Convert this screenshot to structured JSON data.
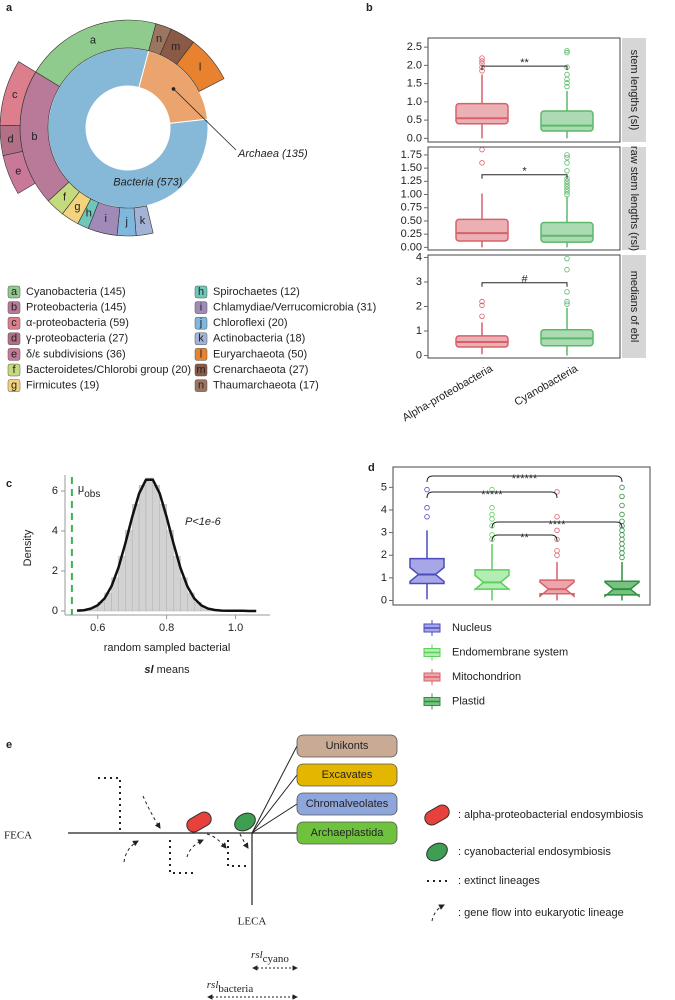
{
  "panel_labels": [
    "a",
    "b",
    "c",
    "d",
    "e"
  ],
  "chart_data": [
    {
      "type": "sunburst",
      "inner": [
        {
          "label": "Archaea (135)",
          "value": 135,
          "color": "#eba46e"
        },
        {
          "label": "Bacteria (573)",
          "value": 573,
          "color": "#86b8d8"
        }
      ],
      "groups": [
        {
          "letter": "a",
          "label": "Cyanobacteria (145)",
          "value": 145,
          "color": "#8fcb8c"
        },
        {
          "letter": "b",
          "label": "Proteobacteria (145)",
          "value": 145,
          "color": "#b87a98"
        },
        {
          "letter": "c",
          "label": "α-proteobacteria (59)",
          "value": 59,
          "color": "#dc7e8c"
        },
        {
          "letter": "d",
          "label": "γ-proteobacteria (27)",
          "value": 27,
          "color": "#b26f86"
        },
        {
          "letter": "e",
          "label": "δ/ε subdivisions (36)",
          "value": 36,
          "color": "#c9789a"
        },
        {
          "letter": "f",
          "label": "Bacteroidetes/Chlorobi group (20)",
          "value": 20,
          "color": "#c5da7c"
        },
        {
          "letter": "g",
          "label": "Firmicutes (19)",
          "value": 19,
          "color": "#f3d37e"
        },
        {
          "letter": "h",
          "label": "Spirochaetes (12)",
          "value": 12,
          "color": "#6fc6b9"
        },
        {
          "letter": "i",
          "label": "Chlamydiae/Verrucomicrobia (31)",
          "value": 31,
          "color": "#a08bb8"
        },
        {
          "letter": "j",
          "label": "Chloroflexi (20)",
          "value": 20,
          "color": "#7fb7dd"
        },
        {
          "letter": "k",
          "label": "Actinobacteria (18)",
          "value": 18,
          "color": "#a3b3d6"
        },
        {
          "letter": "l",
          "label": "Euryarchaeota (50)",
          "value": 50,
          "color": "#e9822f"
        },
        {
          "letter": "m",
          "label": "Crenarchaeota (27)",
          "value": 27,
          "color": "#8a5a46"
        },
        {
          "letter": "n",
          "label": "Thaumarchaeota (17)",
          "value": 17,
          "color": "#9c7560"
        }
      ]
    },
    {
      "type": "box",
      "strip": "stem lengths (sl)",
      "ylim": [
        -0.1,
        2.75
      ],
      "yticks": [
        {
          "value": 0,
          "label": "0.0"
        },
        {
          "value": 0.5,
          "label": "0.5"
        },
        {
          "value": 1,
          "label": "1.0"
        },
        {
          "value": 1.5,
          "label": "1.5"
        },
        {
          "value": 2,
          "label": "2.0"
        },
        {
          "value": 2.5,
          "label": "2.5"
        }
      ],
      "series": [
        {
          "color": "#d9606a",
          "fill": "#eab0b4",
          "min": 0,
          "q1": 0.4,
          "median": 0.55,
          "q3": 0.95,
          "max": 1.75,
          "outliers": [
            1.85,
            1.95,
            2.05,
            2.12,
            2.2
          ]
        },
        {
          "color": "#5cb86a",
          "fill": "#acdab3",
          "min": 0,
          "q1": 0.2,
          "median": 0.35,
          "q3": 0.75,
          "max": 1.3,
          "outliers": [
            1.42,
            1.52,
            1.62,
            1.75,
            1.95,
            2.35,
            2.4
          ]
        }
      ],
      "bracket": "**"
    },
    {
      "type": "box",
      "strip": "raw stem lengths (rsl)",
      "ylim": [
        -0.05,
        1.9
      ],
      "yticks": [
        {
          "value": 0,
          "label": "0.00"
        },
        {
          "value": 0.25,
          "label": "0.25"
        },
        {
          "value": 0.5,
          "label": "0.50"
        },
        {
          "value": 0.75,
          "label": "0.75"
        },
        {
          "value": 1,
          "label": "1.00"
        },
        {
          "value": 1.25,
          "label": "1.25"
        },
        {
          "value": 1.5,
          "label": "1.50"
        },
        {
          "value": 1.75,
          "label": "1.75"
        }
      ],
      "series": [
        {
          "color": "#d9606a",
          "fill": "#eab0b4",
          "min": 0,
          "q1": 0.12,
          "median": 0.27,
          "q3": 0.53,
          "max": 1.02,
          "outliers": [
            1.6,
            1.85
          ]
        },
        {
          "color": "#5cb86a",
          "fill": "#acdab3",
          "min": 0,
          "q1": 0.1,
          "median": 0.22,
          "q3": 0.47,
          "max": 0.95,
          "outliers": [
            1.0,
            1.05,
            1.1,
            1.15,
            1.2,
            1.25,
            1.3,
            1.45,
            1.6,
            1.7,
            1.75
          ]
        }
      ],
      "bracket": "*"
    },
    {
      "type": "box",
      "strip": "medians of ebl",
      "ylim": [
        -0.1,
        4.1
      ],
      "yticks": [
        0,
        1,
        2,
        3,
        4
      ],
      "categories": [
        "Alpha-proteobacteria",
        "Cyanobacteria"
      ],
      "series": [
        {
          "color": "#d9606a",
          "fill": "#eab0b4",
          "min": 0.05,
          "q1": 0.35,
          "median": 0.55,
          "q3": 0.8,
          "max": 1.35,
          "outliers": [
            1.6,
            2.05,
            2.2
          ]
        },
        {
          "color": "#5cb86a",
          "fill": "#acdab3",
          "min": 0,
          "q1": 0.4,
          "median": 0.7,
          "q3": 1.05,
          "max": 1.95,
          "outliers": [
            2.1,
            2.2,
            2.6,
            3.5,
            3.95
          ]
        }
      ],
      "bracket": "#"
    },
    {
      "type": "histogram",
      "ylabel": "Density",
      "xlabel": "random sampled bacterial",
      "xlabel_var": "sl",
      "xlabel_tail": "means",
      "annotation": "P<1e-6",
      "observed": {
        "symbol": "μ",
        "sub": "obs",
        "x": 0.525,
        "color": "#3cb44b"
      },
      "xlim": [
        0.505,
        1.1
      ],
      "ylim": [
        -0.2,
        6.8
      ],
      "xticks": [
        0.6,
        0.8,
        {
          "value": 1,
          "label": "1.0"
        }
      ],
      "yticks": [
        0,
        2,
        4,
        6
      ],
      "bins": [
        0.54,
        0.56,
        0.58,
        0.6,
        0.62,
        0.64,
        0.66,
        0.68,
        0.7,
        0.72,
        0.74,
        0.76,
        0.78,
        0.8,
        0.82,
        0.84,
        0.86,
        0.88,
        0.9,
        0.92,
        0.94,
        0.96
      ],
      "values": [
        0.03,
        0.07,
        0.19,
        0.44,
        0.9,
        1.66,
        2.73,
        4.03,
        5.33,
        6.29,
        6.65,
        6.29,
        5.33,
        4.03,
        2.73,
        1.66,
        0.9,
        0.44,
        0.19,
        0.07,
        0.03
      ],
      "curve": {
        "x": [
          0.54,
          0.56,
          0.58,
          0.6,
          0.62,
          0.64,
          0.66,
          0.68,
          0.7,
          0.72,
          0.74,
          0.76,
          0.78,
          0.8,
          0.82,
          0.84,
          0.86,
          0.88,
          0.9,
          0.92,
          0.94,
          0.96,
          0.98,
          1.0,
          1.02,
          1.04,
          1.06
        ],
        "values": [
          0.02,
          0.04,
          0.12,
          0.29,
          0.63,
          1.24,
          2.16,
          3.37,
          4.7,
          5.87,
          6.56,
          6.56,
          5.87,
          4.7,
          3.37,
          2.16,
          1.24,
          0.63,
          0.29,
          0.12,
          0.05,
          0.02,
          0.01,
          0.01,
          0.01,
          0,
          0
        ]
      }
    },
    {
      "type": "box",
      "notched": true,
      "ylim": [
        -0.2,
        5.9
      ],
      "yticks": [
        0,
        1,
        2,
        3,
        4,
        5
      ],
      "series": [
        {
          "name": "Nucleus",
          "color": "#4b4bbf",
          "fill": "#a7a7e8",
          "min": 0.05,
          "q1": 0.75,
          "median": 1.15,
          "q3": 1.85,
          "max": 3.1,
          "outliers": [
            3.7,
            4.1,
            4.9
          ]
        },
        {
          "name": "Endomembrane system",
          "color": "#5ccf5c",
          "fill": "#b3edb3",
          "min": 0,
          "q1": 0.5,
          "median": 0.8,
          "q3": 1.35,
          "max": 2.5,
          "outliers": [
            2.7,
            2.9,
            3.3,
            3.6,
            3.8,
            4.1,
            4.9
          ]
        },
        {
          "name": "Mitochondrion",
          "color": "#d9606a",
          "fill": "#eaa6ab",
          "min": 0,
          "q1": 0.3,
          "median": 0.5,
          "q3": 0.9,
          "max": 1.7,
          "outliers": [
            2.0,
            2.2,
            2.7,
            3.1,
            3.7,
            4.8
          ]
        },
        {
          "name": "Plastid",
          "color": "#2f8f40",
          "fill": "#76c27e",
          "min": 0,
          "q1": 0.25,
          "median": 0.5,
          "q3": 0.85,
          "max": 1.7,
          "outliers": [
            1.9,
            2.1,
            2.3,
            2.5,
            2.7,
            2.9,
            3.1,
            3.3,
            3.5,
            3.8,
            4.2,
            4.6,
            5.0
          ]
        }
      ],
      "brackets": [
        {
          "pair": [
            "Nucleus",
            "Plastid"
          ],
          "label": "******"
        },
        {
          "pair": [
            "Nucleus",
            "Mitochondrion"
          ],
          "label": "*****"
        },
        {
          "pair": [
            "Endomembrane system",
            "Plastid"
          ],
          "label": "****"
        },
        {
          "pair": [
            "Endomembrane system",
            "Mitochondrion"
          ],
          "label": "**"
        }
      ]
    }
  ],
  "diagram": {
    "start": "FECA",
    "end": "LECA",
    "groups": [
      {
        "label": "Unikonts",
        "color": "#c9aa94"
      },
      {
        "label": "Excavates",
        "color": "#e5b600"
      },
      {
        "label": "Chromalveolates",
        "color": "#8ea6db"
      },
      {
        "label": "Archaeplastida",
        "color": "#6fc23d"
      }
    ],
    "endosymbiont_colors": [
      "#e8413c",
      "#3e9e52"
    ],
    "legend": [
      ": alpha-proteobacterial endosymbiosis",
      ": cyanobacterial endosymbiosis",
      ": extinct lineages",
      ": gene flow into eukaryotic lineage"
    ],
    "spans": [
      {
        "symbol": "rsl",
        "sub": "cyano"
      },
      {
        "symbol": "rsl",
        "sub": "bacteria"
      }
    ]
  }
}
